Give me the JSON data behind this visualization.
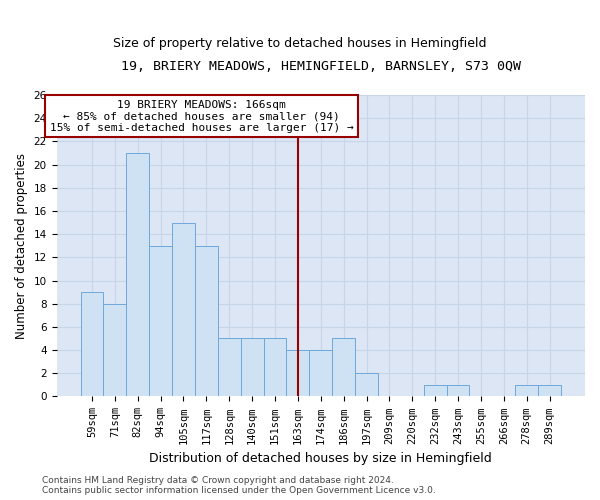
{
  "title": "19, BRIERY MEADOWS, HEMINGFIELD, BARNSLEY, S73 0QW",
  "subtitle": "Size of property relative to detached houses in Hemingfield",
  "xlabel": "Distribution of detached houses by size in Hemingfield",
  "ylabel": "Number of detached properties",
  "bar_labels": [
    "59sqm",
    "71sqm",
    "82sqm",
    "94sqm",
    "105sqm",
    "117sqm",
    "128sqm",
    "140sqm",
    "151sqm",
    "163sqm",
    "174sqm",
    "186sqm",
    "197sqm",
    "209sqm",
    "220sqm",
    "232sqm",
    "243sqm",
    "255sqm",
    "266sqm",
    "278sqm",
    "289sqm"
  ],
  "bar_values": [
    9,
    8,
    21,
    13,
    15,
    13,
    5,
    5,
    5,
    4,
    4,
    5,
    2,
    0,
    0,
    1,
    1,
    0,
    0,
    1,
    1
  ],
  "bar_color": "#cfe2f3",
  "bar_edgecolor": "#6fa8dc",
  "vline_index": 9,
  "vline_color": "#990000",
  "annotation_text": "19 BRIERY MEADOWS: 166sqm\n← 85% of detached houses are smaller (94)\n15% of semi-detached houses are larger (17) →",
  "annotation_box_edgecolor": "#990000",
  "annotation_box_facecolor": "#ffffff",
  "ylim": [
    0,
    26
  ],
  "yticks": [
    0,
    2,
    4,
    6,
    8,
    10,
    12,
    14,
    16,
    18,
    20,
    22,
    24,
    26
  ],
  "grid_color": "#c8d4e8",
  "bg_color": "#dce6f5",
  "footer": "Contains HM Land Registry data © Crown copyright and database right 2024.\nContains public sector information licensed under the Open Government Licence v3.0.",
  "title_fontsize": 9.5,
  "subtitle_fontsize": 9,
  "xlabel_fontsize": 9,
  "ylabel_fontsize": 8.5,
  "tick_fontsize": 7.5,
  "annotation_fontsize": 8,
  "footer_fontsize": 6.5
}
